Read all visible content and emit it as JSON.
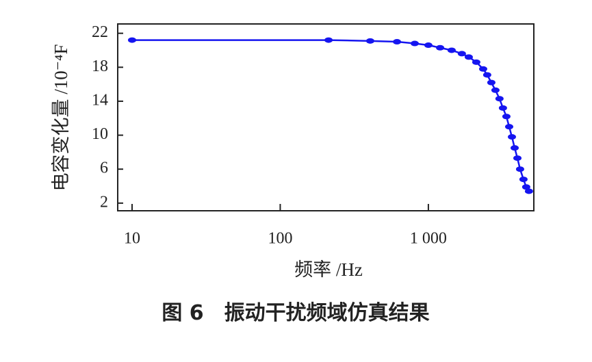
{
  "chart_data": {
    "type": "line",
    "log_x": true,
    "x_label": "频率 /Hz",
    "y_label": "电容变化量 /10⁻⁴F",
    "caption": "图 6　振动干扰频域仿真结果",
    "xlim": [
      8,
      5150
    ],
    "ylim": [
      1.1,
      23.1
    ],
    "xticks": [
      10,
      100,
      {
        "value": 1000,
        "label": "1 000"
      }
    ],
    "yticks": [
      2,
      6,
      10,
      14,
      18,
      22
    ],
    "series": [
      {
        "color": "#1515f0",
        "x": [
          10,
          212,
          405,
          614,
          809,
          1000,
          1200,
          1436,
          1683,
          1874,
          2106,
          2343,
          2495,
          2661,
          2836,
          3020,
          3187,
          3363,
          3511,
          3664,
          3823,
          3990,
          4160,
          4385,
          4575,
          4775
        ],
        "values": [
          21.2,
          21.2,
          21.1,
          21.0,
          20.8,
          20.6,
          20.3,
          20.0,
          19.6,
          19.2,
          18.6,
          17.8,
          17.1,
          16.2,
          15.3,
          14.3,
          13.2,
          12.2,
          11.0,
          9.8,
          8.5,
          7.3,
          6.0,
          4.8,
          3.9,
          3.4
        ]
      }
    ]
  }
}
